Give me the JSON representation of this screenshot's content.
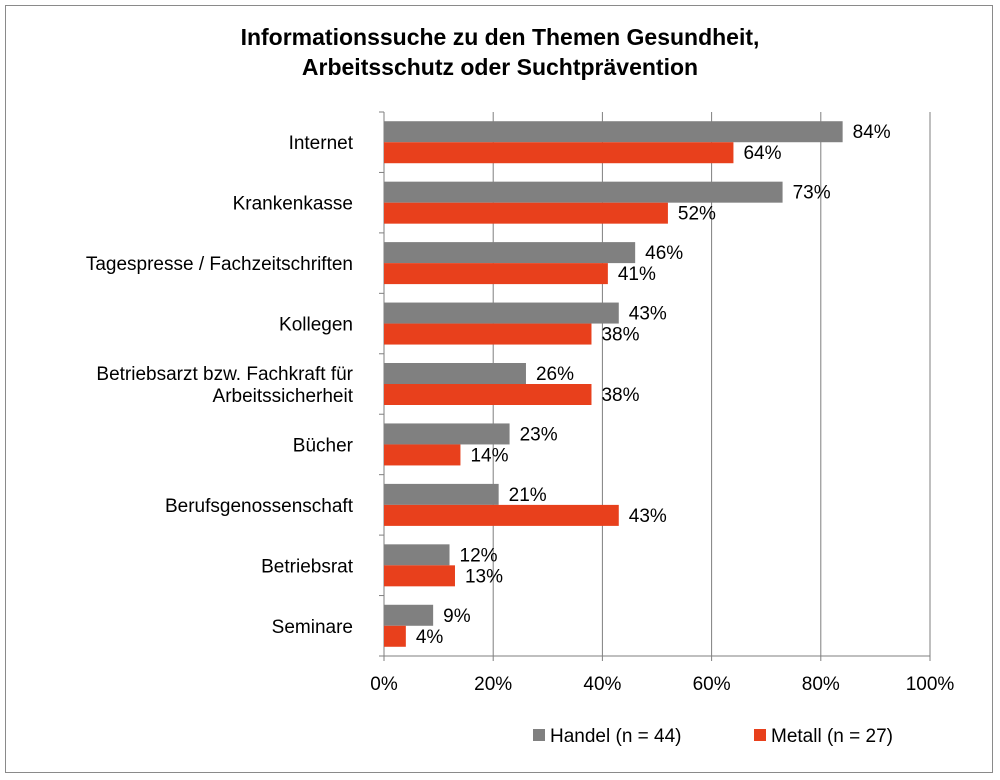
{
  "chart_data": {
    "type": "bar",
    "orientation": "horizontal",
    "title_lines": [
      "Informationssuche zu den Themen Gesundheit,",
      "Arbeitsschutz oder Suchtprävention"
    ],
    "categories": [
      [
        "Internet"
      ],
      [
        "Krankenkasse"
      ],
      [
        "Tagespresse / Fachzeitschriften"
      ],
      [
        "Kollegen"
      ],
      [
        "Betriebsarzt bzw. Fachkraft für",
        "Arbeitssicherheit"
      ],
      [
        "Bücher"
      ],
      [
        "Berufsgenossenschaft"
      ],
      [
        "Betriebsrat"
      ],
      [
        "Seminare"
      ]
    ],
    "series": [
      {
        "name": "Handel (n = 44)",
        "color": "#808080",
        "values": [
          84,
          73,
          46,
          43,
          26,
          23,
          21,
          12,
          9
        ]
      },
      {
        "name": "Metall (n = 27)",
        "color": "#e8401c",
        "values": [
          64,
          52,
          41,
          38,
          38,
          14,
          43,
          13,
          4
        ]
      }
    ],
    "value_suffix": "%",
    "xlim": [
      0,
      100
    ],
    "xticks": [
      0,
      20,
      40,
      60,
      80,
      100
    ],
    "xtick_labels": [
      "0%",
      "20%",
      "40%",
      "60%",
      "80%",
      "100%"
    ],
    "grid": true,
    "legend_position": "bottom-right"
  }
}
